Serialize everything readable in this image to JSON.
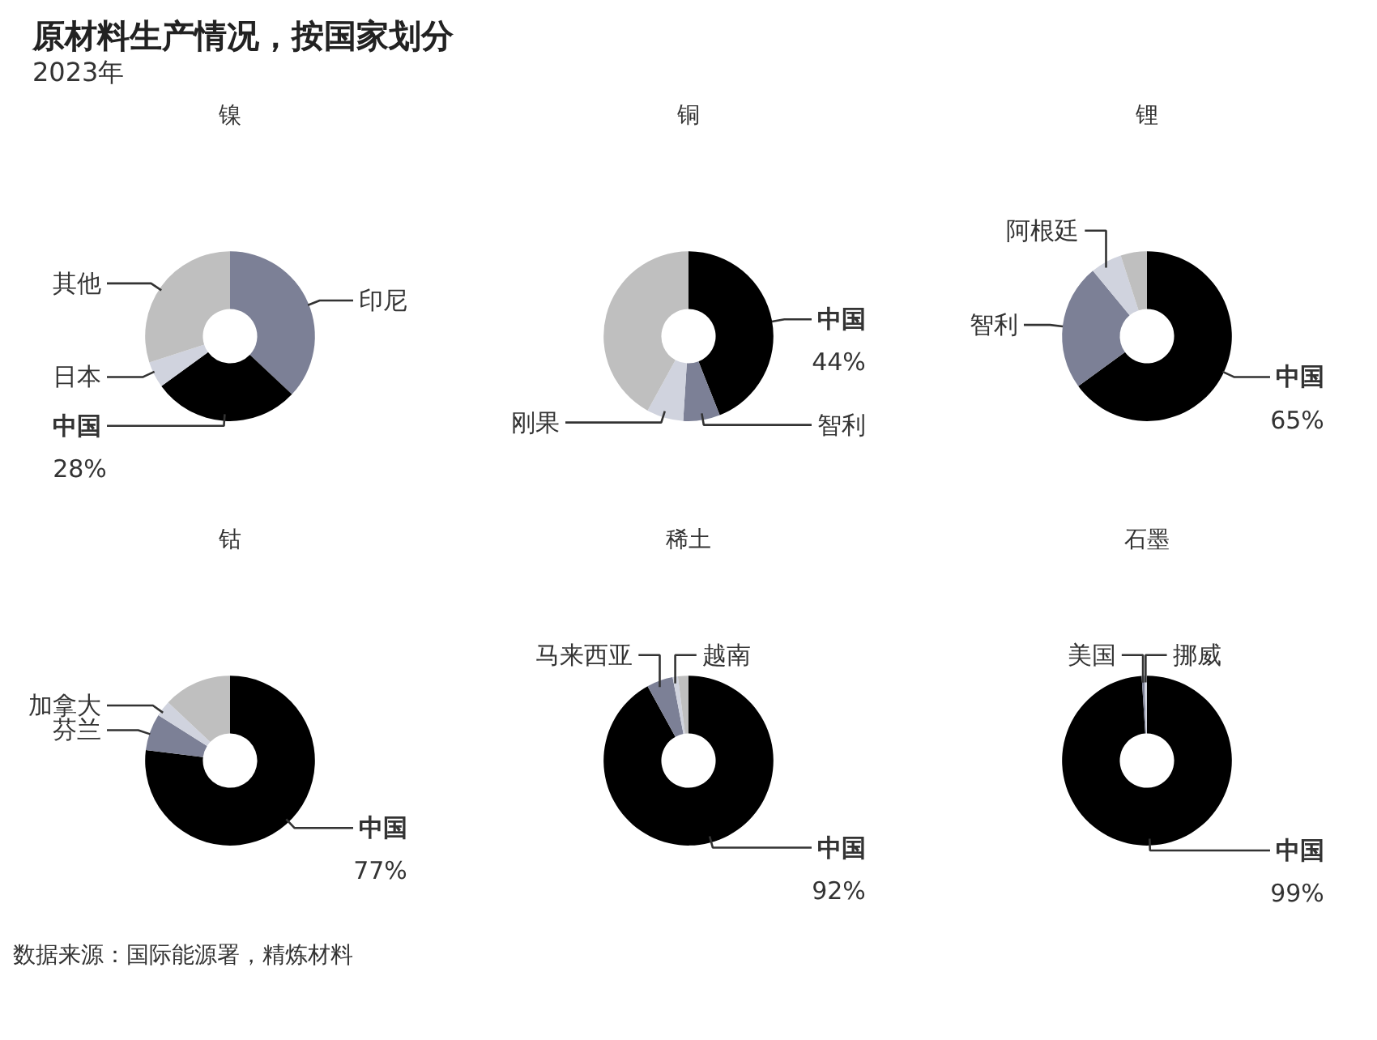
{
  "chart_data": [
    {
      "type": "other",
      "title": "原材料生产情况，按国家划分",
      "subtitle": "2023年",
      "annotations": [
        "数据来源：国际能源署，精炼材料"
      ]
    },
    {
      "type": "donut",
      "title": "镍",
      "categories": [
        "印尼",
        "中国",
        "日本",
        "其他"
      ],
      "values": [
        37,
        28,
        5,
        30
      ],
      "colors": [
        "#7c8096",
        "#000000",
        "#d0d3de",
        "#bfbfbf"
      ],
      "value_labels": [
        null,
        "28%",
        null,
        null
      ]
    },
    {
      "type": "donut",
      "title": "铜",
      "categories": [
        "中国",
        "智利",
        "刚果",
        null
      ],
      "values": [
        44,
        7,
        7,
        42
      ],
      "colors": [
        "#000000",
        "#7c8096",
        "#d0d3de",
        "#bfbfbf"
      ],
      "value_labels": [
        "44%",
        null,
        null,
        null
      ]
    },
    {
      "type": "donut",
      "title": "锂",
      "categories": [
        "中国",
        "智利",
        "阿根廷",
        null
      ],
      "values": [
        65,
        24,
        6,
        5
      ],
      "colors": [
        "#000000",
        "#7c8096",
        "#d0d3de",
        "#bfbfbf"
      ],
      "value_labels": [
        "65%",
        null,
        null,
        null
      ]
    },
    {
      "type": "donut",
      "title": "钴",
      "categories": [
        "中国",
        "芬兰",
        "加拿大",
        null
      ],
      "values": [
        77,
        7,
        3,
        13
      ],
      "colors": [
        "#000000",
        "#7c8096",
        "#d0d3de",
        "#bfbfbf"
      ],
      "value_labels": [
        "77%",
        null,
        null,
        null
      ]
    },
    {
      "type": "donut",
      "title": "稀土",
      "categories": [
        "中国",
        "马来西亚",
        "越南",
        null
      ],
      "values": [
        92,
        5,
        1,
        2
      ],
      "colors": [
        "#000000",
        "#7c8096",
        "#d0d3de",
        "#bfbfbf"
      ],
      "value_labels": [
        "92%",
        null,
        null,
        null
      ]
    },
    {
      "type": "donut",
      "title": "石墨",
      "categories": [
        "中国",
        "美国",
        "挪威"
      ],
      "values": [
        99,
        0.5,
        0.5
      ],
      "colors": [
        "#000000",
        "#7c8096",
        "#d0d3de"
      ],
      "value_labels": [
        "99%",
        null,
        null
      ]
    }
  ]
}
